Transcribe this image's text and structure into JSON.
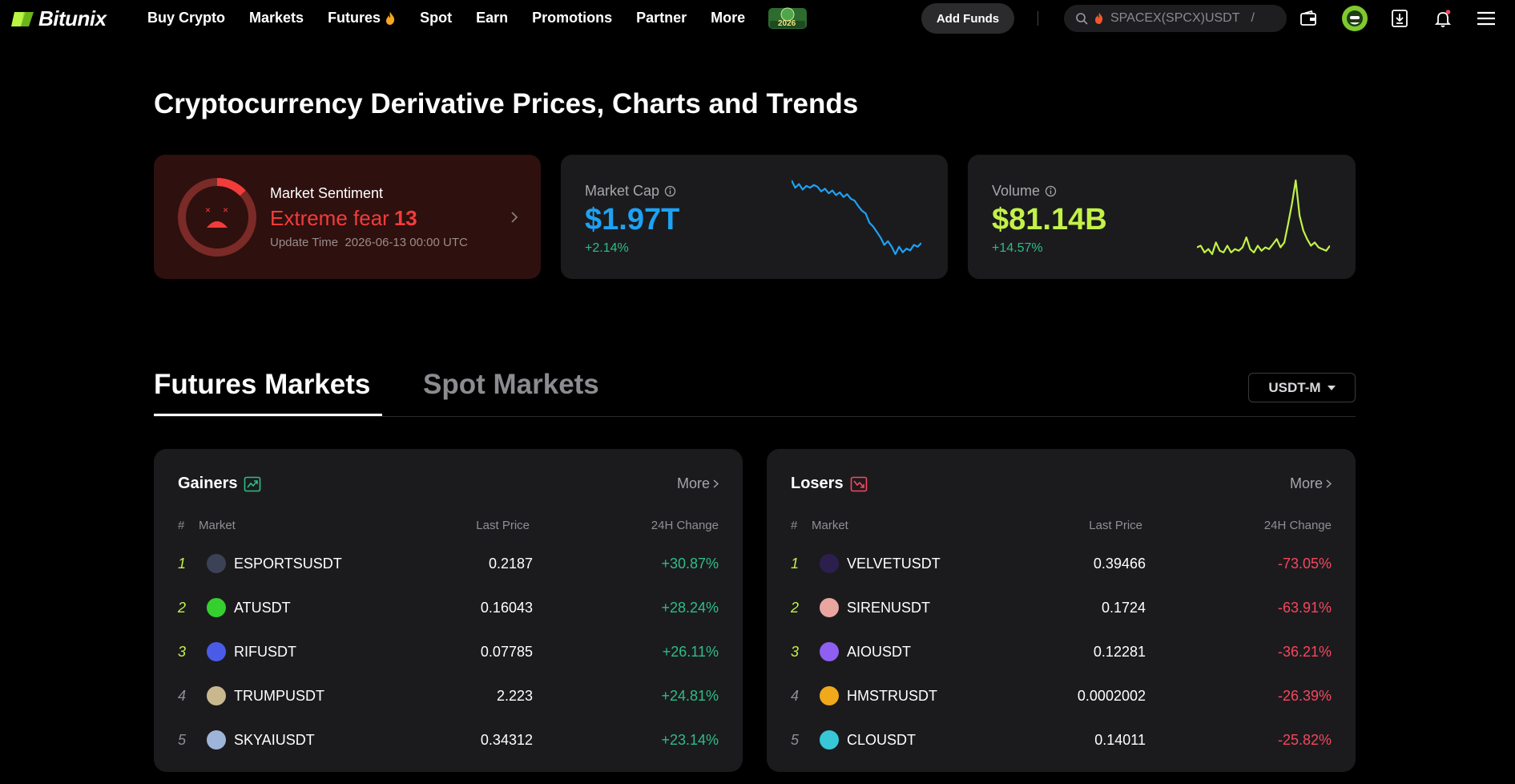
{
  "nav": {
    "brand": "Bitunix",
    "links": [
      "Buy Crypto",
      "Markets",
      "Futures",
      "Spot",
      "Earn",
      "Promotions",
      "Partner",
      "More"
    ],
    "badge_year": "2026",
    "add_funds": "Add Funds",
    "search_placeholder": "SPACEX(SPCX)USDT",
    "search_hotkey": "/"
  },
  "page": {
    "title": "Cryptocurrency Derivative Prices, Charts and Trends"
  },
  "sentiment": {
    "label": "Market Sentiment",
    "status": "Extreme fear",
    "score": "13",
    "update_label": "Update Time",
    "update_time": "2026-06-13 00:00 UTC",
    "gauge_level": 13
  },
  "market_cap": {
    "label": "Market Cap",
    "value": "$1.97T",
    "change": "+2.14%",
    "color": "#1da2f4",
    "spark": [
      88,
      80,
      84,
      78,
      82,
      80,
      83,
      81,
      76,
      79,
      74,
      77,
      72,
      75,
      70,
      73,
      68,
      66,
      60,
      55,
      52,
      42,
      38,
      32,
      26,
      18,
      22,
      16,
      8,
      16,
      10,
      14,
      12,
      18,
      16,
      20
    ]
  },
  "volume": {
    "label": "Volume",
    "value": "$81.14B",
    "change": "+14.57%",
    "color": "#c2f248",
    "spark": [
      12,
      14,
      6,
      10,
      4,
      18,
      8,
      6,
      14,
      6,
      10,
      8,
      12,
      24,
      10,
      6,
      14,
      8,
      12,
      10,
      16,
      22,
      12,
      18,
      40,
      64,
      92,
      50,
      32,
      22,
      14,
      18,
      12,
      10,
      8,
      14
    ]
  },
  "tabs": {
    "futures": "Futures Markets",
    "spot": "Spot Markets",
    "selector": "USDT-M"
  },
  "gainers": {
    "title": "Gainers",
    "more": "More",
    "headers": {
      "rank": "#",
      "market": "Market",
      "price": "Last Price",
      "change": "24H Change"
    },
    "rows": [
      {
        "rank": "1",
        "symbol": "ESPORTSUSDT",
        "price": "0.2187",
        "change": "+30.87%",
        "coin_color": "#3b4256"
      },
      {
        "rank": "2",
        "symbol": "ATUSDT",
        "price": "0.16043",
        "change": "+28.24%",
        "coin_color": "#35d02e"
      },
      {
        "rank": "3",
        "symbol": "RIFUSDT",
        "price": "0.07785",
        "change": "+26.11%",
        "coin_color": "#4a5be8"
      },
      {
        "rank": "4",
        "symbol": "TRUMPUSDT",
        "price": "2.223",
        "change": "+24.81%",
        "coin_color": "#c9b88e"
      },
      {
        "rank": "5",
        "symbol": "SKYAIUSDT",
        "price": "0.34312",
        "change": "+23.14%",
        "coin_color": "#9fb4d9"
      }
    ]
  },
  "losers": {
    "title": "Losers",
    "more": "More",
    "headers": {
      "rank": "#",
      "market": "Market",
      "price": "Last Price",
      "change": "24H Change"
    },
    "rows": [
      {
        "rank": "1",
        "symbol": "VELVETUSDT",
        "price": "0.39466",
        "change": "-73.05%",
        "coin_color": "#2c1f4e"
      },
      {
        "rank": "2",
        "symbol": "SIRENUSDT",
        "price": "0.1724",
        "change": "-63.91%",
        "coin_color": "#e9a6a0"
      },
      {
        "rank": "3",
        "symbol": "AIOUSDT",
        "price": "0.12281",
        "change": "-36.21%",
        "coin_color": "#8e5ff0"
      },
      {
        "rank": "4",
        "symbol": "HMSTRUSDT",
        "price": "0.0002002",
        "change": "-26.39%",
        "coin_color": "#f0a91a"
      },
      {
        "rank": "5",
        "symbol": "CLOUSDT",
        "price": "0.14011",
        "change": "-25.82%",
        "coin_color": "#38c7d6"
      }
    ]
  }
}
